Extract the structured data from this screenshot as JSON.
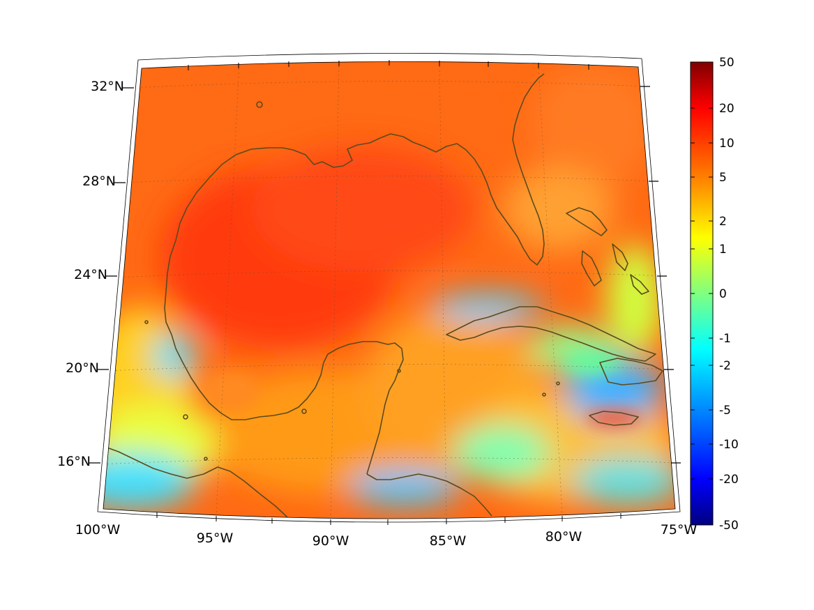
{
  "map": {
    "lon_labels": [
      "100°W",
      "95°W",
      "90°W",
      "85°W",
      "80°W",
      "75°W"
    ],
    "lat_labels": [
      "32°N",
      "28°N",
      "24°N",
      "20°N",
      "16°N"
    ]
  },
  "colorbar": {
    "tick_labels": [
      "50",
      "20",
      "10",
      "5",
      "2",
      "1",
      "0",
      "-1",
      "-2",
      "-5",
      "-10",
      "-20",
      "-50"
    ],
    "colors": [
      "#800000",
      "#ff0000",
      "#ff8000",
      "#ffff00",
      "#80ff80",
      "#00ffff",
      "#0080ff",
      "#0000ff",
      "#000080"
    ]
  },
  "colors": {
    "coastline": "#5b4a1e",
    "field_dominant": "#ff5a14",
    "field_mid": "#ffa000",
    "field_low": "#40e0ff"
  }
}
